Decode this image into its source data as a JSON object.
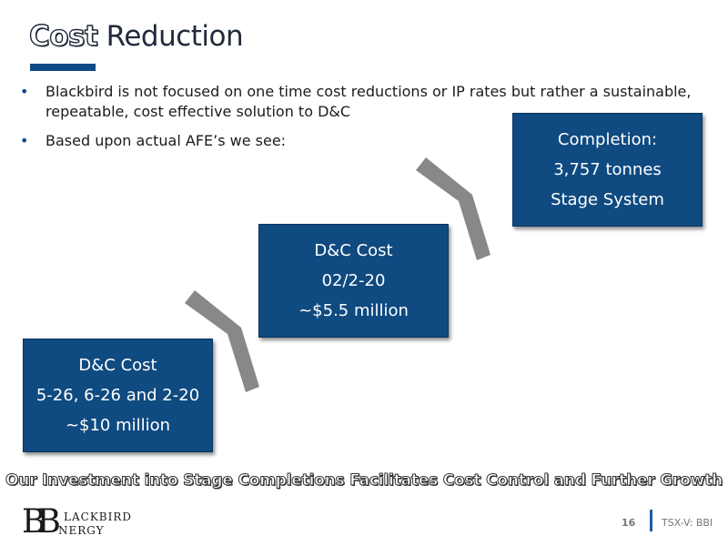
{
  "title": {
    "first_word": "Cost",
    "rest": " Reduction"
  },
  "bullets": [
    "Blackbird is not focused on one time cost reductions or IP rates but rather a sustainable, repeatable, cost effective solution to D&C",
    "Based upon actual AFE’s we see:"
  ],
  "steps": [
    {
      "line1": "D&C Cost",
      "line2": "5-26, 6-26 and 2-20",
      "line3": "~$10 million"
    },
    {
      "line1": "D&C Cost",
      "line2": "02/2-20",
      "line3": "~$5.5 million"
    },
    {
      "line1": "Completion:",
      "line2": "3,757 tonnes",
      "line3": "Stage System"
    }
  ],
  "tagline": "Our Investment into Stage Completions Facilitates Cost Control and Further Growth",
  "logo": {
    "mark": "BB",
    "word1": "LACKBIRD",
    "word2": "NERGY"
  },
  "footer": {
    "page_number": "16",
    "ticker": "TSX-V: BBI"
  },
  "colors": {
    "box": "#0f4a80",
    "accent": "#0d4a86",
    "arrow": "#888888"
  }
}
